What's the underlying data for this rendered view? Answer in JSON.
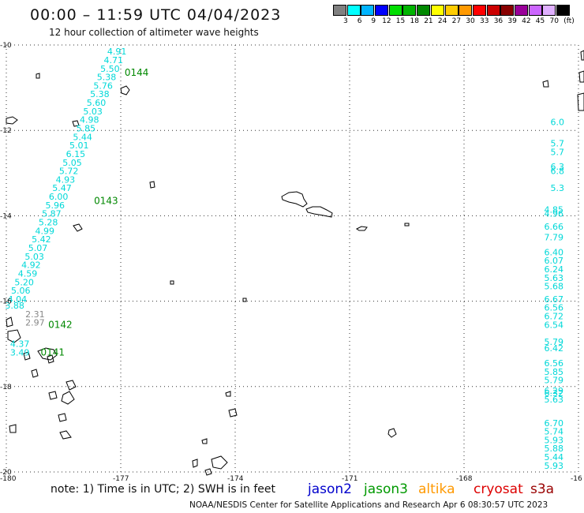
{
  "title": "00:00 – 11:59 UTC 04/04/2023",
  "subtitle": "12 hour collection of altimeter wave heights",
  "legend": {
    "colors": [
      "#808080",
      "#00ffff",
      "#00b4ff",
      "#0000ff",
      "#00dd00",
      "#00b400",
      "#008800",
      "#ffff00",
      "#ffcc00",
      "#ff9900",
      "#ff0000",
      "#cc0000",
      "#880000",
      "#990099",
      "#cc66ff",
      "#e0b0ff",
      "#000000"
    ],
    "labels": [
      "3",
      "6",
      "9",
      "12",
      "15",
      "18",
      "21",
      "24",
      "27",
      "30",
      "33",
      "36",
      "39",
      "42",
      "45",
      "70",
      "(ft)"
    ]
  },
  "map": {
    "lat_labels": [
      "-10",
      "-12",
      "-14",
      "-16",
      "-18",
      "-20"
    ],
    "lon_labels": [
      "-180",
      "-177",
      "-174",
      "-171",
      "-168",
      "-16"
    ],
    "track_color": "#00d8d8",
    "pass_label_color": "#008800",
    "passes": [
      {
        "id": "0144",
        "lat": -10.65,
        "lon": -176.9
      },
      {
        "id": "0143",
        "lat": -13.65,
        "lon": -177.7
      },
      {
        "id": "0142",
        "lat": -16.55,
        "lon": -178.9
      },
      {
        "id": "0141",
        "lat": -17.2,
        "lon": -179.1
      }
    ],
    "track_main": [
      {
        "lat": -10.15,
        "v": "4.91"
      },
      {
        "lat": -10.35,
        "v": "4.71"
      },
      {
        "lat": -10.55,
        "v": "5.50"
      },
      {
        "lat": -10.75,
        "v": "5.38"
      },
      {
        "lat": -10.95,
        "v": "5.76"
      },
      {
        "lat": -11.15,
        "v": "5.38"
      },
      {
        "lat": -11.35,
        "v": "5.60"
      },
      {
        "lat": -11.55,
        "v": "5.03"
      },
      {
        "lat": -11.75,
        "v": "4.98"
      },
      {
        "lat": -11.95,
        "v": "5.85"
      },
      {
        "lat": -12.15,
        "v": "5.44"
      },
      {
        "lat": -12.35,
        "v": "5.01"
      },
      {
        "lat": -12.55,
        "v": "6.15"
      },
      {
        "lat": -12.75,
        "v": "5.05"
      },
      {
        "lat": -12.95,
        "v": "5.72"
      },
      {
        "lat": -13.15,
        "v": "4.93"
      },
      {
        "lat": -13.35,
        "v": "5.47"
      },
      {
        "lat": -13.55,
        "v": "6.00"
      },
      {
        "lat": -13.75,
        "v": "5.96"
      },
      {
        "lat": -13.95,
        "v": "5.87"
      },
      {
        "lat": -14.15,
        "v": "5.28"
      },
      {
        "lat": -14.35,
        "v": "4.99"
      },
      {
        "lat": -14.55,
        "v": "5.42"
      },
      {
        "lat": -14.75,
        "v": "5.07"
      },
      {
        "lat": -14.95,
        "v": "5.03"
      },
      {
        "lat": -15.15,
        "v": "4.92"
      },
      {
        "lat": -15.35,
        "v": "4.59"
      },
      {
        "lat": -15.55,
        "v": "5.20"
      },
      {
        "lat": -15.75,
        "v": "5.06"
      },
      {
        "lat": -15.95,
        "v": "4.04"
      },
      {
        "lat": -16.1,
        "v": "3.88"
      }
    ],
    "track_gray": [
      {
        "lat": -16.3,
        "v": "2.31"
      },
      {
        "lat": -16.5,
        "v": "2.97"
      }
    ],
    "track_low": [
      {
        "lat": -17.0,
        "v": "4.37"
      },
      {
        "lat": -17.2,
        "v": "3.49"
      }
    ],
    "track_right": [
      {
        "lat": -10.3,
        "v": ""
      },
      {
        "lat": -11.6,
        "v": ""
      },
      {
        "lat": -11.8,
        "v": "6.0"
      },
      {
        "lat": -12.3,
        "v": "5.7"
      },
      {
        "lat": -12.5,
        "v": "5.7"
      },
      {
        "lat": -12.85,
        "v": "6.3"
      },
      {
        "lat": -12.95,
        "v": "6.8"
      },
      {
        "lat": -13.35,
        "v": "5.3"
      },
      {
        "lat": -13.85,
        "v": "4.85"
      },
      {
        "lat": -13.95,
        "v": "4.96"
      },
      {
        "lat": -14.25,
        "v": "6.66"
      },
      {
        "lat": -14.5,
        "v": "7.79"
      },
      {
        "lat": -14.85,
        "v": "6.40"
      },
      {
        "lat": -15.05,
        "v": "6.07"
      },
      {
        "lat": -15.25,
        "v": "6.24"
      },
      {
        "lat": -15.45,
        "v": "5.63"
      },
      {
        "lat": -15.65,
        "v": "5.68"
      },
      {
        "lat": -15.95,
        "v": "6.67"
      },
      {
        "lat": -16.15,
        "v": "6.56"
      },
      {
        "lat": -16.35,
        "v": "6.72"
      },
      {
        "lat": -16.55,
        "v": "6.54"
      },
      {
        "lat": -16.95,
        "v": "5.79"
      },
      {
        "lat": -17.1,
        "v": "6.42"
      },
      {
        "lat": -17.45,
        "v": "6.56"
      },
      {
        "lat": -17.65,
        "v": "5.85"
      },
      {
        "lat": -17.85,
        "v": "5.79"
      },
      {
        "lat": -18.1,
        "v": "6.29"
      },
      {
        "lat": -18.15,
        "v": "6.32"
      },
      {
        "lat": -18.3,
        "v": "5.63"
      },
      {
        "lat": -18.85,
        "v": "6.70"
      },
      {
        "lat": -19.05,
        "v": "5.74"
      },
      {
        "lat": -19.25,
        "v": "5.93"
      },
      {
        "lat": -19.45,
        "v": "5.88"
      },
      {
        "lat": -19.65,
        "v": "5.44"
      },
      {
        "lat": -19.85,
        "v": "5.93"
      }
    ]
  },
  "note": "note:  1) Time is in UTC;  2) SWH is in feet",
  "satellites": [
    {
      "name": "jason2",
      "color": "#0000cc"
    },
    {
      "name": "jason3",
      "color": "#009900"
    },
    {
      "name": "altika",
      "color": "#ff9900"
    },
    {
      "name": "cryosat",
      "color": "#dd0000"
    },
    {
      "name": "s3a",
      "color": "#990000"
    }
  ],
  "footer": "NOAA/NESDIS Center for Satellite Applications and Research    Apr  6 08:30:57 UTC 2023"
}
